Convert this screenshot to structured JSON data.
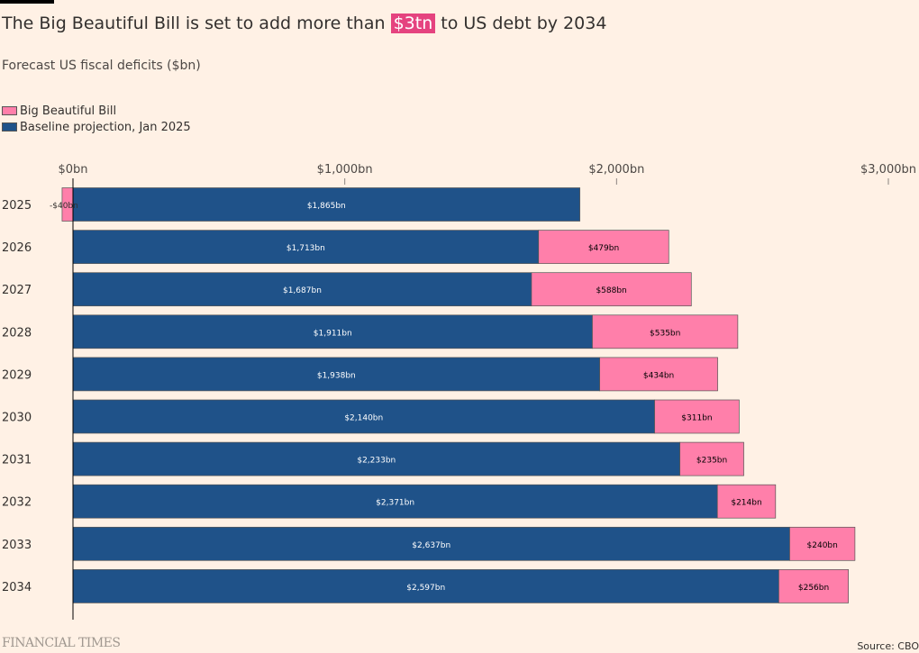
{
  "title": {
    "before": "The Big Beautiful Bill is set to add more than ",
    "highlight": "$3tn",
    "after": " to US debt by 2034"
  },
  "subtitle": "Forecast US fiscal deficits ($bn)",
  "footer": {
    "brand": "FINANCIAL TIMES",
    "source": "Source: CBO"
  },
  "colors": {
    "bill": "#ff7faa",
    "baseline": "#1f5289",
    "background": "#fff1e5",
    "highlight": "#e5437f"
  },
  "chart_data": {
    "type": "bar",
    "orientation": "horizontal",
    "stacked": true,
    "categories": [
      "2025",
      "2026",
      "2027",
      "2028",
      "2029",
      "2030",
      "2031",
      "2032",
      "2033",
      "2034"
    ],
    "series": [
      {
        "name": "Big Beautiful Bill",
        "values": [
          -40,
          479,
          588,
          535,
          434,
          311,
          235,
          214,
          240,
          256
        ],
        "labels": [
          "-$40bn",
          "$479bn",
          "$588bn",
          "$535bn",
          "$434bn",
          "$311bn",
          "$235bn",
          "$214bn",
          "$240bn",
          "$256bn"
        ]
      },
      {
        "name": "Baseline projection, Jan 2025",
        "values": [
          1865,
          1713,
          1687,
          1911,
          1938,
          2140,
          2233,
          2371,
          2637,
          2597
        ],
        "labels": [
          "$1,865bn",
          "$1,713bn",
          "$1,687bn",
          "$1,911bn",
          "$1,938bn",
          "$2,140bn",
          "$2,233bn",
          "$2,371bn",
          "$2,637bn",
          "$2,597bn"
        ]
      }
    ],
    "xticks": [
      0,
      1000,
      2000,
      3000
    ],
    "xtick_labels": [
      "$0bn",
      "$1,000bn",
      "$2,000bn",
      "$3,000bn"
    ],
    "xlim": [
      0,
      3000
    ],
    "legend_position": "top-left",
    "grid": false
  }
}
